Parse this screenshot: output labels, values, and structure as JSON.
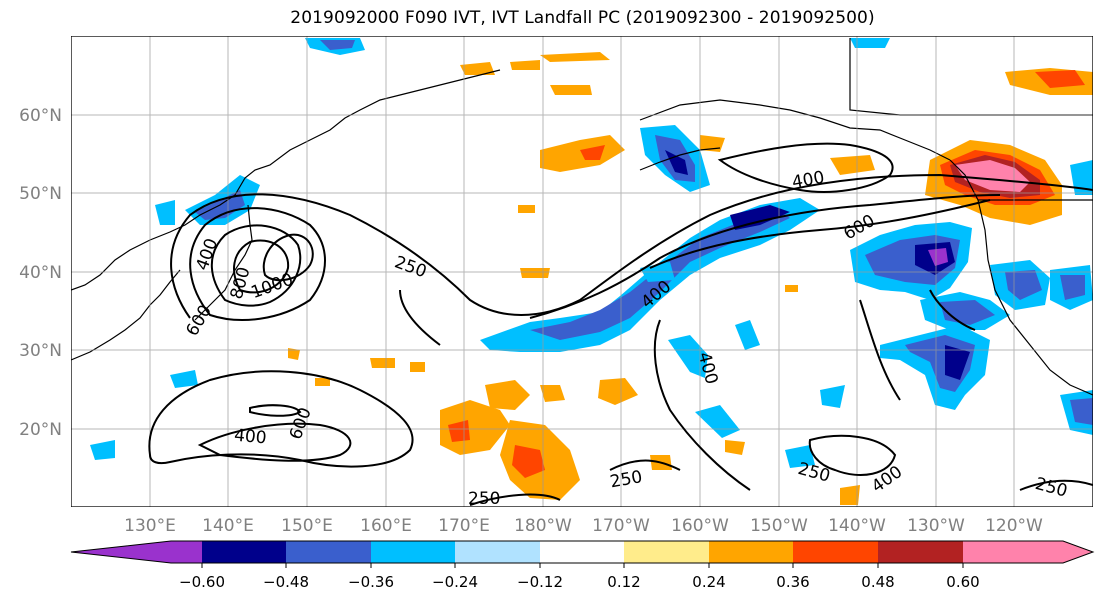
{
  "title": "2019092000 F090 IVT, IVT Landfall PC (2019092300 - 2019092500)",
  "lat_ticks": [
    "20°N",
    "30°N",
    "40°N",
    "50°N",
    "60°N"
  ],
  "lon_ticks": [
    "130°E",
    "140°E",
    "150°E",
    "160°E",
    "170°E",
    "180°W",
    "170°W",
    "160°W",
    "150°W",
    "140°W",
    "130°W",
    "120°W"
  ],
  "contour_levels": [
    "250",
    "400",
    "600",
    "800",
    "1000"
  ],
  "contour_labels": [
    "400",
    "600",
    "800",
    "1000",
    "250",
    "400",
    "600",
    "400",
    "400",
    "250",
    "250",
    "400",
    "250",
    "250",
    "600",
    "400",
    "250"
  ],
  "colorbar": {
    "ticks": [
      "−0.60",
      "−0.48",
      "−0.36",
      "−0.24",
      "−0.12",
      "0.12",
      "0.24",
      "0.36",
      "0.48",
      "0.60"
    ],
    "colors": [
      "#9a32cd",
      "#00008b",
      "#3a5fcd",
      "#00bfff",
      "#b0e2ff",
      "#ffffff",
      "#ffec8b",
      "#ffa500",
      "#ff4500",
      "#b22222",
      "#ff82ab"
    ]
  }
}
